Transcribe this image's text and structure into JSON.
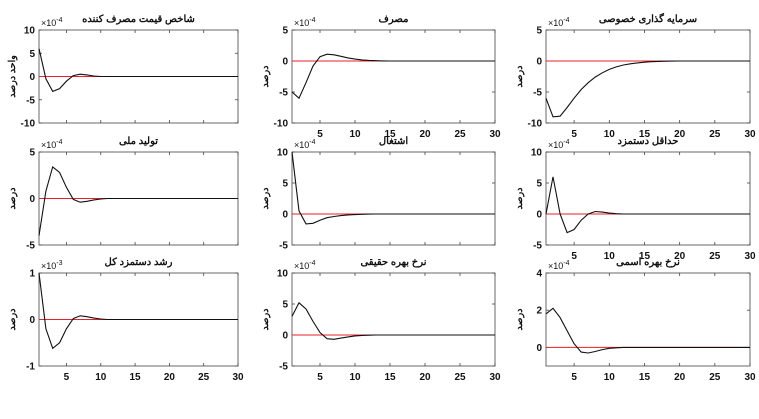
{
  "chart_data": [
    {
      "type": "line",
      "title": "شاخص قیمت مصرف کننده",
      "ylabel": "واحد درصد",
      "exponent_label": "×10",
      "exponent_power": "-4",
      "xlim": [
        1,
        30
      ],
      "ylim": [
        -10,
        10
      ],
      "yticks": [
        -10,
        -5,
        0,
        5,
        10
      ],
      "xticks": [],
      "series": [
        {
          "x": [
            1,
            2,
            3,
            4,
            5,
            6,
            7,
            8,
            9,
            10,
            11,
            12,
            13,
            14,
            15,
            16,
            17,
            18,
            19,
            20,
            21,
            22,
            23,
            24,
            25,
            26,
            27,
            28,
            29,
            30
          ],
          "y": [
            6,
            -0.5,
            -3.2,
            -2.6,
            -1.0,
            0.2,
            0.5,
            0.35,
            0.1,
            0,
            0,
            0,
            0,
            0,
            0,
            0,
            0,
            0,
            0,
            0,
            0,
            0,
            0,
            0,
            0,
            0,
            0,
            0,
            0,
            0
          ]
        }
      ],
      "zero_line": true
    },
    {
      "type": "line",
      "title": "مصرف",
      "ylabel": "درصد",
      "exponent_label": "×10",
      "exponent_power": "-4",
      "xlim": [
        1,
        30
      ],
      "ylim": [
        -10,
        5
      ],
      "yticks": [
        -10,
        -5,
        0,
        5
      ],
      "xticks": [
        5,
        10,
        15,
        20,
        25,
        30
      ],
      "series": [
        {
          "x": [
            1,
            2,
            3,
            4,
            5,
            6,
            7,
            8,
            9,
            10,
            11,
            12,
            13,
            14,
            15,
            16,
            17,
            18,
            19,
            20,
            21,
            22,
            23,
            24,
            25,
            26,
            27,
            28,
            29,
            30
          ],
          "y": [
            -5,
            -6,
            -3.5,
            -0.8,
            0.7,
            1.1,
            1.0,
            0.75,
            0.5,
            0.3,
            0.18,
            0.1,
            0.05,
            0.02,
            0,
            0,
            0,
            0,
            0,
            0,
            0,
            0,
            0,
            0,
            0,
            0,
            0,
            0,
            0,
            0
          ]
        }
      ],
      "zero_line": true
    },
    {
      "type": "line",
      "title": "سرمایه گذاری خصوصی",
      "ylabel": "درصد",
      "exponent_label": "×10",
      "exponent_power": "-4",
      "xlim": [
        1,
        30
      ],
      "ylim": [
        -10,
        5
      ],
      "yticks": [
        -10,
        -5,
        0,
        5
      ],
      "xticks": [
        5,
        10,
        15,
        20,
        25,
        30
      ],
      "series": [
        {
          "x": [
            1,
            2,
            3,
            4,
            5,
            6,
            7,
            8,
            9,
            10,
            11,
            12,
            13,
            14,
            15,
            16,
            17,
            18,
            19,
            20,
            21,
            22,
            23,
            24,
            25,
            26,
            27,
            28,
            29,
            30
          ],
          "y": [
            -6,
            -9,
            -8.9,
            -7.5,
            -6,
            -4.6,
            -3.5,
            -2.6,
            -1.9,
            -1.35,
            -0.95,
            -0.65,
            -0.45,
            -0.3,
            -0.2,
            -0.12,
            -0.07,
            -0.04,
            -0.02,
            0,
            0,
            0,
            0,
            0,
            0,
            0,
            0,
            0,
            0,
            0
          ]
        }
      ],
      "zero_line": true
    },
    {
      "type": "line",
      "title": "تولید ملی",
      "ylabel": "درصد",
      "exponent_label": "×10",
      "exponent_power": "-4",
      "xlim": [
        1,
        30
      ],
      "ylim": [
        -5,
        5
      ],
      "yticks": [
        -5,
        0,
        5
      ],
      "xticks": [],
      "series": [
        {
          "x": [
            1,
            2,
            3,
            4,
            5,
            6,
            7,
            8,
            9,
            10,
            11,
            12,
            13,
            14,
            15,
            16,
            17,
            18,
            19,
            20,
            21,
            22,
            23,
            24,
            25,
            26,
            27,
            28,
            29,
            30
          ],
          "y": [
            -4,
            0.8,
            3.4,
            2.8,
            1.2,
            -0.1,
            -0.4,
            -0.3,
            -0.15,
            -0.05,
            0,
            0,
            0,
            0,
            0,
            0,
            0,
            0,
            0,
            0,
            0,
            0,
            0,
            0,
            0,
            0,
            0,
            0,
            0,
            0
          ]
        }
      ],
      "zero_line": true
    },
    {
      "type": "line",
      "title": "اشتغال",
      "ylabel": "درصد",
      "exponent_label": "×10",
      "exponent_power": "-4",
      "xlim": [
        1,
        30
      ],
      "ylim": [
        -5,
        10
      ],
      "yticks": [
        -5,
        0,
        5,
        10
      ],
      "xticks": [],
      "series": [
        {
          "x": [
            1,
            2,
            3,
            4,
            5,
            6,
            7,
            8,
            9,
            10,
            11,
            12,
            13,
            14,
            15,
            16,
            17,
            18,
            19,
            20,
            21,
            22,
            23,
            24,
            25,
            26,
            27,
            28,
            29,
            30
          ],
          "y": [
            10,
            0.5,
            -1.6,
            -1.5,
            -1.0,
            -0.6,
            -0.4,
            -0.25,
            -0.15,
            -0.1,
            -0.05,
            -0.02,
            0,
            0,
            0,
            0,
            0,
            0,
            0,
            0,
            0,
            0,
            0,
            0,
            0,
            0,
            0,
            0,
            0,
            0
          ]
        }
      ],
      "zero_line": true
    },
    {
      "type": "line",
      "title": "حداقل دستمزد",
      "ylabel": "درصد",
      "exponent_label": "×10",
      "exponent_power": "-4",
      "xlim": [
        1,
        30
      ],
      "ylim": [
        -5,
        10
      ],
      "yticks": [
        -5,
        0,
        5,
        10
      ],
      "xticks": [
        5,
        10,
        15,
        20,
        25,
        30
      ],
      "series": [
        {
          "x": [
            1,
            2,
            3,
            4,
            5,
            6,
            7,
            8,
            9,
            10,
            11,
            12,
            13,
            14,
            15,
            16,
            17,
            18,
            19,
            20,
            21,
            22,
            23,
            24,
            25,
            26,
            27,
            28,
            29,
            30
          ],
          "y": [
            0,
            6,
            0,
            -3,
            -2.5,
            -1,
            0,
            0.4,
            0.3,
            0.15,
            0.05,
            0,
            0,
            0,
            0,
            0,
            0,
            0,
            0,
            0,
            0,
            0,
            0,
            0,
            0,
            0,
            0,
            0,
            0,
            0
          ]
        }
      ],
      "zero_line": true
    },
    {
      "type": "line",
      "title": "رشد دستمزد کل",
      "ylabel": "درصد",
      "exponent_label": "×10",
      "exponent_power": "-3",
      "xlim": [
        1,
        30
      ],
      "ylim": [
        -1,
        1
      ],
      "yticks": [
        -1,
        0,
        1
      ],
      "xticks": [
        5,
        10,
        15,
        20,
        25,
        30
      ],
      "series": [
        {
          "x": [
            1,
            2,
            3,
            4,
            5,
            6,
            7,
            8,
            9,
            10,
            11,
            12,
            13,
            14,
            15,
            16,
            17,
            18,
            19,
            20,
            21,
            22,
            23,
            24,
            25,
            26,
            27,
            28,
            29,
            30
          ],
          "y": [
            1,
            -0.2,
            -0.62,
            -0.5,
            -0.2,
            0.02,
            0.08,
            0.06,
            0.03,
            0.01,
            0,
            0,
            0,
            0,
            0,
            0,
            0,
            0,
            0,
            0,
            0,
            0,
            0,
            0,
            0,
            0,
            0,
            0,
            0,
            0
          ]
        }
      ],
      "zero_line": true
    },
    {
      "type": "line",
      "title": "نرخ بهره حقیقی",
      "ylabel": "درصد",
      "exponent_label": "×10",
      "exponent_power": "-4",
      "xlim": [
        1,
        30
      ],
      "ylim": [
        -5,
        10
      ],
      "yticks": [
        -5,
        0,
        5,
        10
      ],
      "xticks": [
        5,
        10,
        15,
        20,
        25,
        30
      ],
      "series": [
        {
          "x": [
            1,
            2,
            3,
            4,
            5,
            6,
            7,
            8,
            9,
            10,
            11,
            12,
            13,
            14,
            15,
            16,
            17,
            18,
            19,
            20,
            21,
            22,
            23,
            24,
            25,
            26,
            27,
            28,
            29,
            30
          ],
          "y": [
            3,
            5.2,
            4.2,
            2.2,
            0.4,
            -0.6,
            -0.7,
            -0.5,
            -0.3,
            -0.15,
            -0.07,
            -0.03,
            0,
            0,
            0,
            0,
            0,
            0,
            0,
            0,
            0,
            0,
            0,
            0,
            0,
            0,
            0,
            0,
            0,
            0
          ]
        }
      ],
      "zero_line": true
    },
    {
      "type": "line",
      "title": "نرخ بهره اسمی",
      "ylabel": "درصد",
      "exponent_label": "×10",
      "exponent_power": "-4",
      "xlim": [
        1,
        30
      ],
      "ylim": [
        -1,
        4
      ],
      "yticks": [
        0,
        2,
        4
      ],
      "xticks": [
        5,
        10,
        15,
        20,
        25,
        30
      ],
      "series": [
        {
          "x": [
            1,
            2,
            3,
            4,
            5,
            6,
            7,
            8,
            9,
            10,
            11,
            12,
            13,
            14,
            15,
            16,
            17,
            18,
            19,
            20,
            21,
            22,
            23,
            24,
            25,
            26,
            27,
            28,
            29,
            30
          ],
          "y": [
            1.8,
            2.1,
            1.6,
            0.9,
            0.2,
            -0.25,
            -0.3,
            -0.22,
            -0.12,
            -0.05,
            -0.02,
            0,
            0,
            0,
            0,
            0,
            0,
            0,
            0,
            0,
            0,
            0,
            0,
            0,
            0,
            0,
            0,
            0,
            0,
            0
          ]
        }
      ],
      "zero_line": true
    }
  ],
  "style": {
    "line_color": "#111111",
    "zero_line_color": "#e8202a",
    "axes_color": "#444444"
  }
}
